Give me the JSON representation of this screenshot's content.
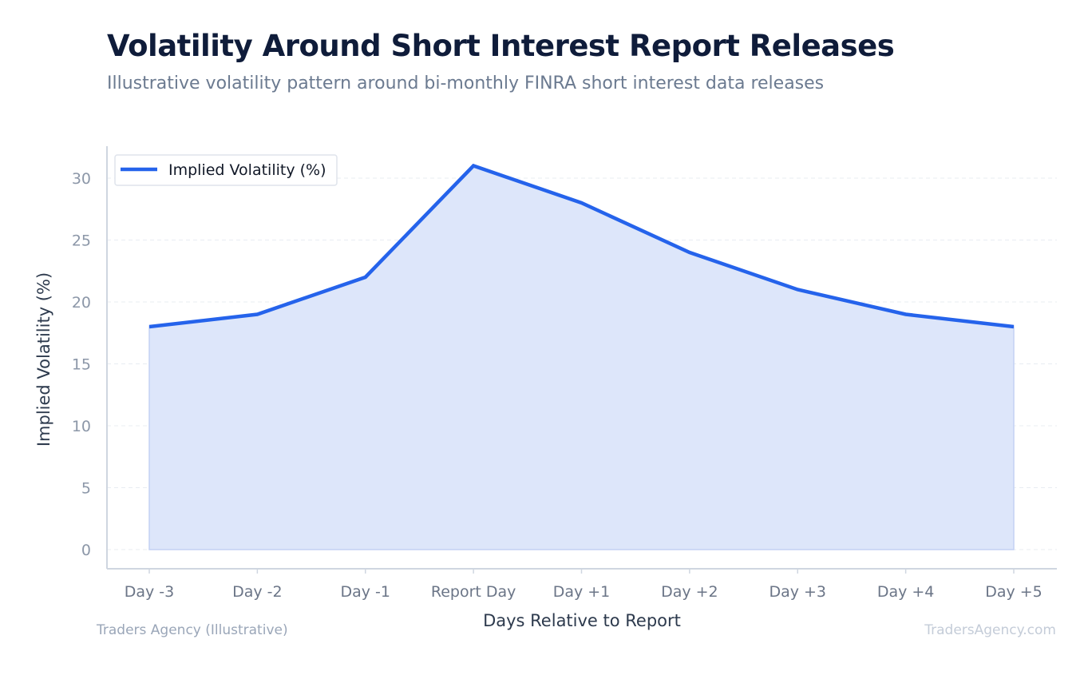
{
  "title": "Volatility Around Short Interest Report Releases",
  "subtitle": "Illustrative volatility pattern around bi-monthly FINRA short interest data releases",
  "footer": {
    "left": "Traders Agency (Illustrative)",
    "right": "TradersAgency.com"
  },
  "colors": {
    "line": "#2563eb",
    "fill": "#dde6fa",
    "axis": "#cfd6e0",
    "grid": "#e8ecf2",
    "tick_text": "#8c97a8",
    "axis_label": "#2d3a4d"
  },
  "chart_data": {
    "type": "area",
    "categories": [
      "Day -3",
      "Day -2",
      "Day -1",
      "Report Day",
      "Day +1",
      "Day +2",
      "Day +3",
      "Day +4",
      "Day +5"
    ],
    "series": [
      {
        "name": "Implied Volatility (%)",
        "values": [
          18,
          19,
          22,
          31,
          28,
          24,
          21,
          19,
          18
        ]
      }
    ],
    "xlabel": "Days Relative to Report",
    "ylabel": "Implied Volatility (%)",
    "ylim": [
      0,
      32
    ],
    "yticks": [
      0,
      5,
      10,
      15,
      20,
      25,
      30
    ],
    "grid": true,
    "legend_position": "top-left"
  }
}
